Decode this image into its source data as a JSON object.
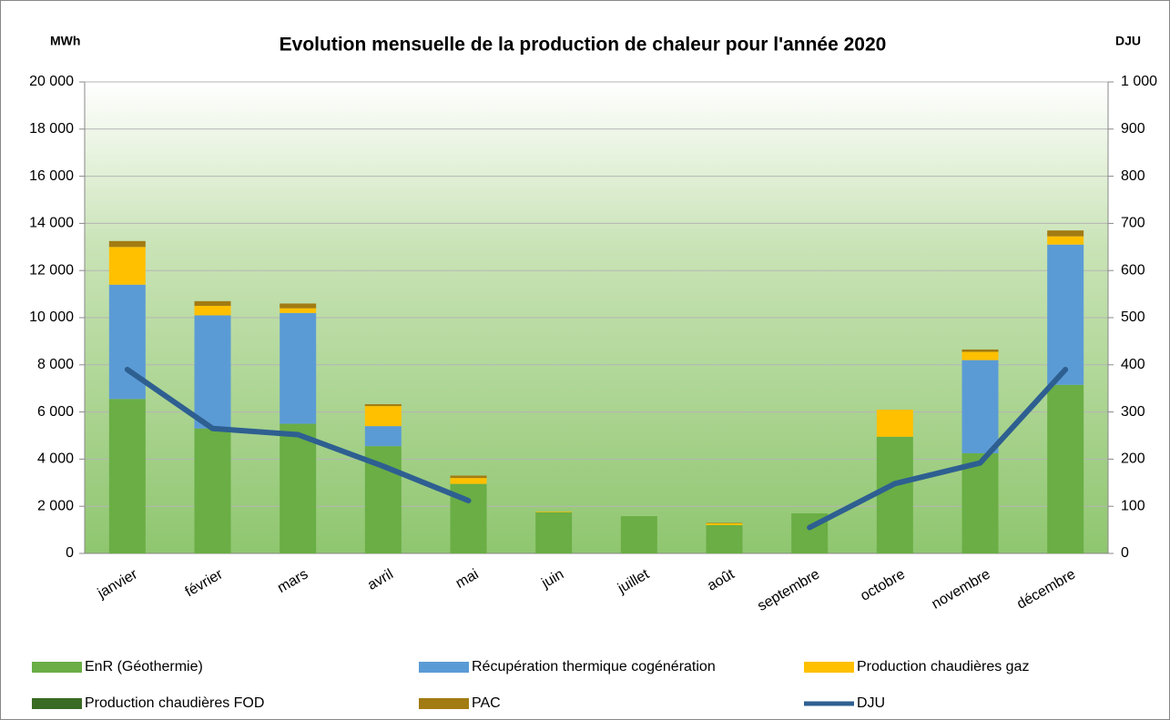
{
  "chart_data": {
    "type": "bar",
    "stacked": true,
    "title": "Evolution mensuelle de la production de chaleur pour l'année 2020",
    "y_label": "MWh",
    "y2_label": "DJU",
    "categories": [
      "janvier",
      "février",
      "mars",
      "avril",
      "mai",
      "juin",
      "juillet",
      "août",
      "septembre",
      "octobre",
      "novembre",
      "décembre"
    ],
    "series": [
      {
        "name": "EnR (Géothermie)",
        "color": "#6aae45",
        "values": [
          6550,
          5300,
          5500,
          4550,
          2950,
          1750,
          1580,
          1200,
          1700,
          4950,
          4250,
          7150
        ]
      },
      {
        "name": "Récupération thermique cogénération",
        "color": "#5b9bd5",
        "values": [
          4850,
          4800,
          4700,
          850,
          0,
          0,
          0,
          0,
          0,
          0,
          3950,
          5950
        ]
      },
      {
        "name": "Production chaudières gaz",
        "color": "#ffc000",
        "values": [
          1600,
          400,
          200,
          850,
          250,
          30,
          0,
          80,
          0,
          1150,
          350,
          350
        ]
      },
      {
        "name": "Production chaudières FOD",
        "color": "#3a6b24",
        "values": [
          0,
          0,
          0,
          0,
          0,
          0,
          0,
          0,
          0,
          0,
          0,
          0
        ]
      },
      {
        "name": "PAC",
        "color": "#a27b12",
        "values": [
          250,
          200,
          200,
          80,
          100,
          0,
          0,
          20,
          0,
          0,
          100,
          250
        ]
      },
      {
        "name": "DJU",
        "type": "line",
        "axis": "y2",
        "color": "#2e5f91",
        "values": [
          390,
          265,
          252,
          185,
          112,
          null,
          null,
          null,
          55,
          148,
          192,
          390
        ]
      }
    ],
    "ylim": [
      0,
      20000
    ],
    "yticks": [
      0,
      {
        "value": 2000,
        "label": "2 000"
      },
      {
        "value": 4000,
        "label": "4 000"
      },
      {
        "value": 6000,
        "label": "6 000"
      },
      {
        "value": 8000,
        "label": "8 000"
      },
      {
        "value": 10000,
        "label": "10 000"
      },
      {
        "value": 12000,
        "label": "12 000"
      },
      {
        "value": 14000,
        "label": "14 000"
      },
      {
        "value": 16000,
        "label": "16 000"
      },
      {
        "value": 18000,
        "label": "18 000"
      },
      {
        "value": 20000,
        "label": "20 000"
      }
    ],
    "y2lim": [
      0,
      1000
    ],
    "y2ticks": [
      0,
      100,
      200,
      300,
      400,
      500,
      600,
      700,
      800,
      900,
      {
        "value": 1000,
        "label": "1 000"
      }
    ],
    "grid": true,
    "legend": "bottom"
  }
}
